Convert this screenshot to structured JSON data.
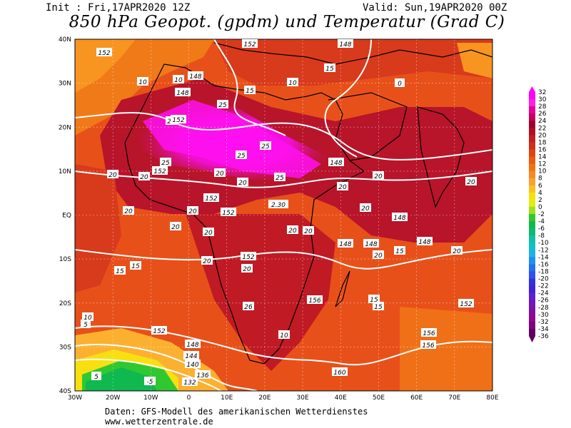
{
  "header": {
    "init": "Init : Fri,17APR2020 12Z",
    "valid": "Valid: Sun,19APR2020 00Z",
    "title": "850 hPa Geopot. (gpdm) und Temperatur (Grad C)"
  },
  "footer": {
    "line1": "Daten: GFS-Modell des amerikanischen Wetterdienstes",
    "line2": "www.wetterzentrale.de"
  },
  "map": {
    "lat_labels": [
      "40N",
      "30N",
      "20N",
      "10N",
      "EQ",
      "10S",
      "20S",
      "30S",
      "40S"
    ],
    "lon_labels": [
      "30W",
      "20W",
      "10W",
      "0",
      "10E",
      "20E",
      "30E",
      "40E",
      "50E",
      "60E",
      "70E",
      "80E"
    ],
    "temperature_labels": [
      {
        "text": "25"
      },
      {
        "text": "25"
      },
      {
        "text": "25"
      },
      {
        "text": "25"
      },
      {
        "text": "25"
      },
      {
        "text": "25"
      },
      {
        "text": "20"
      },
      {
        "text": "20"
      },
      {
        "text": "20"
      },
      {
        "text": "20"
      },
      {
        "text": "20"
      },
      {
        "text": "20"
      },
      {
        "text": "20"
      },
      {
        "text": "20"
      },
      {
        "text": "20"
      },
      {
        "text": "20"
      },
      {
        "text": "20"
      },
      {
        "text": "20"
      },
      {
        "text": "20"
      },
      {
        "text": "20"
      },
      {
        "text": "20"
      },
      {
        "text": "20"
      },
      {
        "text": "20"
      },
      {
        "text": "20"
      },
      {
        "text": "26"
      },
      {
        "text": "2.30"
      },
      {
        "text": "15"
      },
      {
        "text": "15"
      },
      {
        "text": "15"
      },
      {
        "text": "15"
      },
      {
        "text": "15"
      },
      {
        "text": "15"
      },
      {
        "text": "15"
      },
      {
        "text": "10"
      },
      {
        "text": "10"
      },
      {
        "text": "10"
      },
      {
        "text": "10"
      },
      {
        "text": "10"
      },
      {
        "text": "5"
      },
      {
        "text": "5"
      },
      {
        "text": "-5"
      },
      {
        "text": "0"
      }
    ],
    "geopotential_labels": [
      {
        "text": "152"
      },
      {
        "text": "152"
      },
      {
        "text": "152"
      },
      {
        "text": "152"
      },
      {
        "text": "152"
      },
      {
        "text": "152"
      },
      {
        "text": "148"
      },
      {
        "text": "148"
      },
      {
        "text": "148"
      },
      {
        "text": "148"
      },
      {
        "text": "148"
      },
      {
        "text": "148"
      },
      {
        "text": "148"
      },
      {
        "text": "148"
      },
      {
        "text": "156"
      },
      {
        "text": "156"
      },
      {
        "text": "160"
      },
      {
        "text": "152"
      },
      {
        "text": "144"
      },
      {
        "text": "140"
      },
      {
        "text": "136"
      },
      {
        "text": "132"
      },
      {
        "text": "152"
      },
      {
        "text": "148"
      },
      {
        "text": "152"
      },
      {
        "text": "156"
      }
    ]
  },
  "colorbar": {
    "labels": [
      "32",
      "30",
      "28",
      "26",
      "24",
      "22",
      "20",
      "18",
      "16",
      "14",
      "12",
      "10",
      "8",
      "6",
      "4",
      "2",
      "0",
      "-2",
      "-4",
      "-6",
      "-8",
      "-10",
      "-12",
      "-14",
      "-16",
      "-18",
      "-20",
      "-22",
      "-24",
      "-26",
      "-28",
      "-30",
      "-32",
      "-34",
      "-36"
    ],
    "colors": [
      "#ff00ff",
      "#ff20e0",
      "#e8009a",
      "#c80060",
      "#a00030",
      "#b01020",
      "#c02020",
      "#d03018",
      "#e04410",
      "#ec5a10",
      "#f47010",
      "#f88820",
      "#fca030",
      "#fcc020",
      "#f8e010",
      "#e0ee10",
      "#a0e020",
      "#30c830",
      "#10b850",
      "#10b870",
      "#10c0a0",
      "#10c0c8",
      "#20b0e8",
      "#2090f0",
      "#2070f0",
      "#3050f0",
      "#3030e0",
      "#4020d8",
      "#6020d0",
      "#7018b8",
      "#8010a0",
      "#900890",
      "#800080",
      "#600060"
    ]
  }
}
